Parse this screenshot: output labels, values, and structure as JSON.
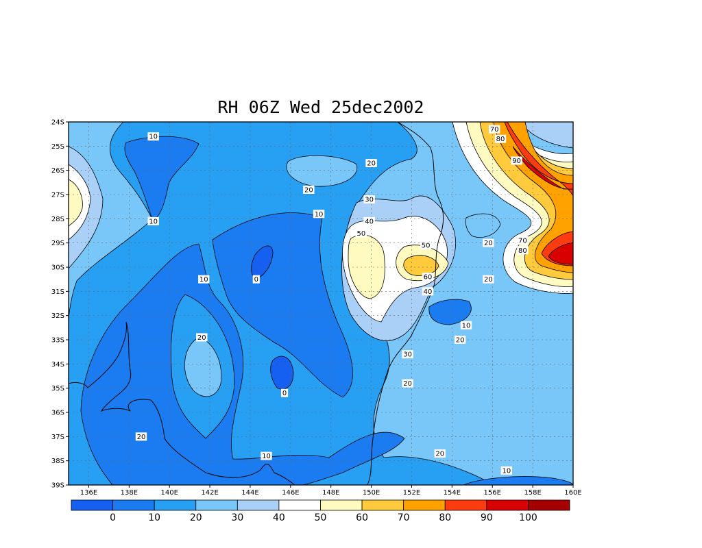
{
  "title": "RH 06Z Wed 25dec2002",
  "colors": {
    "levels": [
      "#1560f0",
      "#1a7cf0",
      "#27a0f4",
      "#79c6f8",
      "#abd0f8",
      "#ffffff",
      "#fffbc0",
      "#ffca3c",
      "#ffa200",
      "#ff3c10",
      "#d80000",
      "#a40000"
    ],
    "contour": "#000000",
    "coast": "#000000",
    "grid": "#666666"
  },
  "map": {
    "lat_labels": [
      "24S",
      "25S",
      "26S",
      "27S",
      "28S",
      "29S",
      "30S",
      "31S",
      "32S",
      "33S",
      "34S",
      "35S",
      "36S",
      "37S",
      "38S",
      "39S"
    ],
    "lon_labels": [
      "136E",
      "138E",
      "140E",
      "142E",
      "144E",
      "146E",
      "148E",
      "150E",
      "152E",
      "154E",
      "156E",
      "158E",
      "160E"
    ],
    "lat_range": [
      -39,
      -24
    ],
    "lon_range": [
      135,
      160
    ]
  },
  "colorbar": {
    "labels": [
      "0",
      "10",
      "20",
      "30",
      "40",
      "50",
      "60",
      "70",
      "80",
      "90",
      "100"
    ]
  },
  "contour_labels": [
    {
      "text": "10",
      "lon": 139.2,
      "lat": -24.6
    },
    {
      "text": "10",
      "lon": 139.2,
      "lat": -28.1
    },
    {
      "text": "20",
      "lon": 150.0,
      "lat": -25.7
    },
    {
      "text": "20",
      "lon": 146.9,
      "lat": -26.8
    },
    {
      "text": "10",
      "lon": 147.4,
      "lat": -27.8
    },
    {
      "text": "30",
      "lon": 149.9,
      "lat": -27.2
    },
    {
      "text": "40",
      "lon": 149.9,
      "lat": -28.1
    },
    {
      "text": "50",
      "lon": 149.5,
      "lat": -28.6
    },
    {
      "text": "50",
      "lon": 152.7,
      "lat": -29.1
    },
    {
      "text": "60",
      "lon": 152.8,
      "lat": -30.4
    },
    {
      "text": "40",
      "lon": 152.8,
      "lat": -31.0
    },
    {
      "text": "10",
      "lon": 141.7,
      "lat": -30.5
    },
    {
      "text": "0",
      "lon": 144.3,
      "lat": -30.5
    },
    {
      "text": "20",
      "lon": 141.6,
      "lat": -32.9
    },
    {
      "text": "10",
      "lon": 154.7,
      "lat": -32.4
    },
    {
      "text": "20",
      "lon": 154.4,
      "lat": -33.0
    },
    {
      "text": "30",
      "lon": 151.8,
      "lat": -33.6
    },
    {
      "text": "0",
      "lon": 145.7,
      "lat": -35.2
    },
    {
      "text": "20",
      "lon": 151.8,
      "lat": -34.8
    },
    {
      "text": "20",
      "lon": 138.6,
      "lat": -37.0
    },
    {
      "text": "10",
      "lon": 144.8,
      "lat": -37.8
    },
    {
      "text": "20",
      "lon": 153.4,
      "lat": -37.7
    },
    {
      "text": "10",
      "lon": 156.7,
      "lat": -38.4
    },
    {
      "text": "70",
      "lon": 156.1,
      "lat": -24.3
    },
    {
      "text": "80",
      "lon": 156.4,
      "lat": -24.7
    },
    {
      "text": "90",
      "lon": 157.2,
      "lat": -25.6
    },
    {
      "text": "20",
      "lon": 155.8,
      "lat": -29.0
    },
    {
      "text": "20",
      "lon": 155.8,
      "lat": -30.5
    },
    {
      "text": "70",
      "lon": 157.5,
      "lat": -28.9
    },
    {
      "text": "80",
      "lon": 157.5,
      "lat": -29.3
    }
  ]
}
